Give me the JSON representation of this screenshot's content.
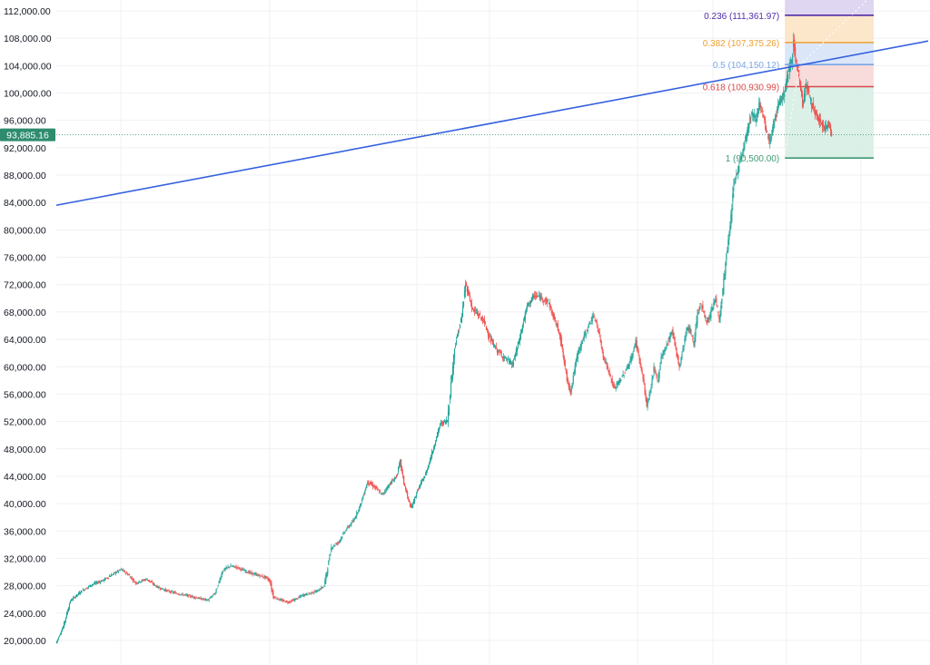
{
  "chart_data": {
    "type": "line",
    "title": "",
    "xlabel": "",
    "ylabel": "",
    "ylim": [
      19000,
      114000
    ],
    "grid": true,
    "y_ticks": [
      "112,000.00",
      "108,000.00",
      "104,000.00",
      "100,000.00",
      "96,000.00",
      "92,000.00",
      "88,000.00",
      "84,000.00",
      "80,000.00",
      "76,000.00",
      "72,000.00",
      "68,000.00",
      "64,000.00",
      "60,000.00",
      "56,000.00",
      "52,000.00",
      "48,000.00",
      "44,000.00",
      "40,000.00",
      "36,000.00",
      "32,000.00",
      "28,000.00",
      "24,000.00",
      "20,000.00"
    ],
    "y_tick_values": [
      112000,
      108000,
      104000,
      100000,
      96000,
      92000,
      88000,
      84000,
      80000,
      76000,
      72000,
      68000,
      64000,
      60000,
      56000,
      52000,
      48000,
      44000,
      40000,
      36000,
      32000,
      28000,
      24000,
      20000
    ],
    "current_price": {
      "label": "93,885.16",
      "value": 93885.16,
      "color": "#2e8b6e"
    },
    "candle_colors": {
      "up": "#26a69a",
      "down": "#ef5350"
    },
    "series": [
      {
        "style": "candles-approx",
        "color": "#26a69a",
        "points": [
          [
            0,
            19600
          ],
          [
            2,
            22000
          ],
          [
            4,
            25800
          ],
          [
            7,
            27200
          ],
          [
            10,
            28200
          ],
          [
            13,
            28800
          ],
          [
            16,
            29800
          ],
          [
            18,
            30400
          ],
          [
            20,
            29600
          ],
          [
            22,
            28400
          ],
          [
            25,
            29000
          ],
          [
            28,
            27800
          ],
          [
            31,
            27200
          ],
          [
            34,
            26800
          ],
          [
            37,
            26500
          ],
          [
            40,
            26100
          ],
          [
            42,
            25900
          ],
          [
            44,
            27000
          ],
          [
            46,
            30200
          ],
          [
            48,
            30900
          ],
          [
            50,
            30700
          ],
          [
            52,
            30200
          ],
          [
            54,
            29800
          ],
          [
            56,
            29500
          ],
          [
            58,
            29200
          ],
          [
            59,
            28700
          ],
          [
            60,
            26400
          ],
          [
            62,
            25900
          ],
          [
            64,
            25600
          ],
          [
            66,
            26000
          ],
          [
            68,
            26600
          ],
          [
            70,
            26900
          ],
          [
            72,
            27200
          ],
          [
            74,
            28000
          ],
          [
            76,
            33600
          ],
          [
            78,
            34400
          ],
          [
            80,
            36200
          ],
          [
            82,
            37400
          ],
          [
            84,
            39800
          ],
          [
            86,
            43200
          ],
          [
            88,
            42400
          ],
          [
            90,
            41300
          ],
          [
            92,
            42800
          ],
          [
            94,
            44000
          ],
          [
            95,
            46200
          ],
          [
            96,
            43100
          ],
          [
            97,
            41000
          ],
          [
            98,
            39300
          ],
          [
            99,
            40800
          ],
          [
            100,
            42200
          ],
          [
            102,
            44300
          ],
          [
            104,
            47800
          ],
          [
            106,
            51600
          ],
          [
            108,
            52200
          ],
          [
            110,
            62800
          ],
          [
            112,
            67400
          ],
          [
            113,
            72100
          ],
          [
            114,
            70400
          ],
          [
            115,
            68200
          ],
          [
            116,
            67900
          ],
          [
            118,
            66700
          ],
          [
            120,
            63800
          ],
          [
            122,
            62200
          ],
          [
            124,
            61200
          ],
          [
            126,
            60300
          ],
          [
            128,
            64300
          ],
          [
            130,
            68900
          ],
          [
            132,
            70400
          ],
          [
            134,
            70100
          ],
          [
            136,
            69300
          ],
          [
            137,
            67600
          ],
          [
            138,
            66300
          ],
          [
            139,
            64800
          ],
          [
            140,
            61400
          ],
          [
            141,
            58200
          ],
          [
            142,
            56300
          ],
          [
            143,
            59400
          ],
          [
            144,
            62100
          ],
          [
            146,
            64800
          ],
          [
            148,
            67300
          ],
          [
            149,
            66700
          ],
          [
            150,
            64400
          ],
          [
            151,
            61600
          ],
          [
            152,
            60100
          ],
          [
            154,
            56800
          ],
          [
            156,
            58300
          ],
          [
            158,
            60300
          ],
          [
            159,
            61600
          ],
          [
            160,
            63800
          ],
          [
            162,
            58200
          ],
          [
            163,
            54300
          ],
          [
            164,
            56500
          ],
          [
            165,
            59700
          ],
          [
            166,
            57900
          ],
          [
            167,
            61400
          ],
          [
            168,
            62600
          ],
          [
            169,
            63800
          ],
          [
            170,
            65500
          ],
          [
            172,
            59800
          ],
          [
            173,
            62700
          ],
          [
            174,
            65600
          ],
          [
            175,
            65300
          ],
          [
            176,
            63300
          ],
          [
            177,
            67900
          ],
          [
            178,
            69200
          ],
          [
            179,
            67300
          ],
          [
            180,
            66400
          ],
          [
            181,
            68400
          ],
          [
            182,
            70100
          ],
          [
            183,
            66700
          ],
          [
            184,
            71200
          ],
          [
            185,
            76300
          ],
          [
            186,
            80400
          ],
          [
            187,
            86800
          ],
          [
            188,
            88400
          ],
          [
            189,
            90800
          ],
          [
            190,
            92800
          ],
          [
            191,
            95300
          ],
          [
            192,
            97100
          ],
          [
            193,
            96200
          ],
          [
            194,
            98400
          ],
          [
            195,
            96800
          ],
          [
            196,
            94300
          ],
          [
            197,
            92800
          ],
          [
            198,
            95600
          ],
          [
            199,
            97500
          ],
          [
            200,
            99100
          ],
          [
            201,
            100200
          ],
          [
            202,
            102800
          ],
          [
            203,
            104900
          ],
          [
            203.5,
            107900
          ],
          [
            204,
            105200
          ],
          [
            205,
            102400
          ],
          [
            206,
            98400
          ],
          [
            207,
            101200
          ],
          [
            208,
            99400
          ],
          [
            209,
            97600
          ],
          [
            210,
            96200
          ],
          [
            211,
            95900
          ],
          [
            212,
            94400
          ],
          [
            213,
            95700
          ],
          [
            214,
            93885
          ]
        ]
      }
    ],
    "trendline": {
      "color": "#3461e0",
      "p1": {
        "x": 0,
        "y": 83600
      },
      "p2": {
        "x": 225,
        "y": 107600
      }
    },
    "fibonacci": {
      "x_from": 201,
      "levels": [
        {
          "label": "0.236 (111,361.97)",
          "value": 111361.97,
          "color": "#512da8",
          "fill": "#d9cfee"
        },
        {
          "label": "0.382 (107,375.26)",
          "value": 107375.26,
          "color": "#f0a030",
          "fill": "#fbe3c2"
        },
        {
          "label": "0.5 (104,150.12)",
          "value": 104150.12,
          "color": "#7aa6e8",
          "fill": "#d5e3f8"
        },
        {
          "label": "0.618 (100,930.99)",
          "value": 100930.99,
          "color": "#d84a4a",
          "fill": "#f7d6d6"
        },
        {
          "label": "1 (90,500.00)",
          "value": 90500,
          "color": "#3f9b73",
          "fill": "#d5ede3"
        }
      ],
      "top_value": 114000
    },
    "x_range": [
      0,
      225
    ]
  }
}
